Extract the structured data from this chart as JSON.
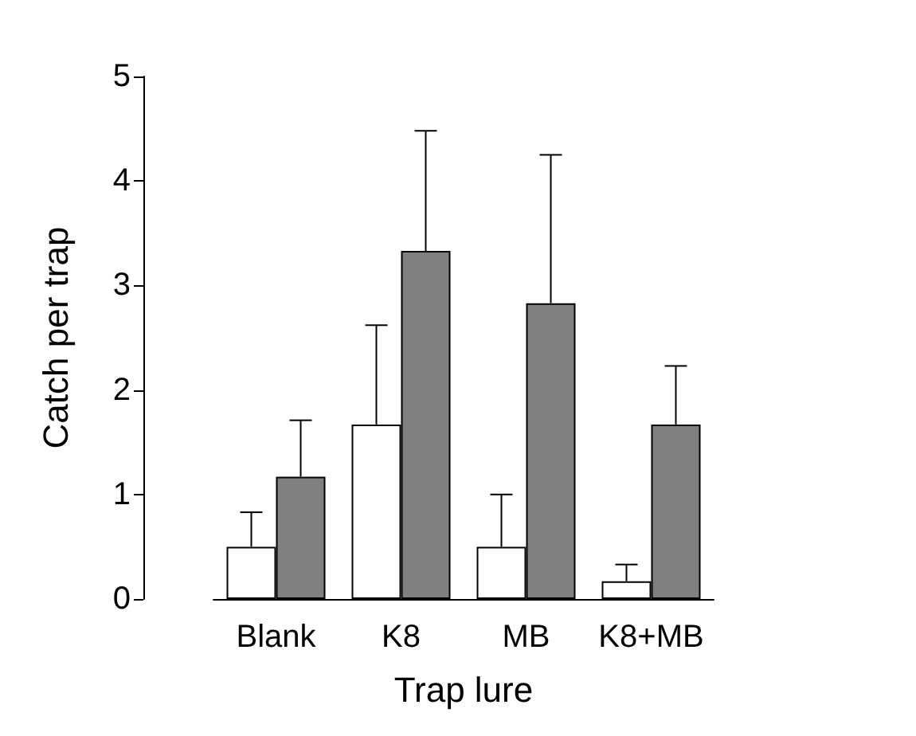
{
  "chart_data": {
    "type": "bar",
    "xlabel": "Trap lure",
    "ylabel": "Catch per trap",
    "categories": [
      "Blank",
      "K8",
      "MB",
      "K8+MB"
    ],
    "series": [
      {
        "color": "#ffffff",
        "values": [
          0.5,
          1.67,
          0.5,
          0.17
        ],
        "errors": [
          [
            0.5,
            0.83
          ],
          [
            1.67,
            2.62
          ],
          [
            0.5,
            1.0
          ],
          [
            0.17,
            0.33
          ]
        ]
      },
      {
        "color": "#808080",
        "values": [
          1.17,
          3.33,
          2.83,
          1.67
        ],
        "errors": [
          [
            1.17,
            1.71
          ],
          [
            3.33,
            4.48
          ],
          [
            2.83,
            4.25
          ],
          [
            1.67,
            2.23
          ]
        ]
      }
    ],
    "ylim": [
      0,
      5
    ],
    "yticks": [
      0,
      1,
      2,
      3,
      4,
      5
    ],
    "grid": false
  }
}
